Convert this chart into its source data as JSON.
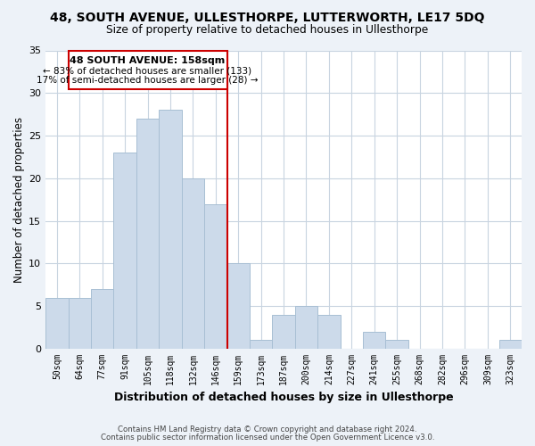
{
  "title_line1": "48, SOUTH AVENUE, ULLESTHORPE, LUTTERWORTH, LE17 5DQ",
  "title_line2": "Size of property relative to detached houses in Ullesthorpe",
  "xlabel": "Distribution of detached houses by size in Ullesthorpe",
  "ylabel": "Number of detached properties",
  "bar_labels": [
    "50sqm",
    "64sqm",
    "77sqm",
    "91sqm",
    "105sqm",
    "118sqm",
    "132sqm",
    "146sqm",
    "159sqm",
    "173sqm",
    "187sqm",
    "200sqm",
    "214sqm",
    "227sqm",
    "241sqm",
    "255sqm",
    "268sqm",
    "282sqm",
    "296sqm",
    "309sqm",
    "323sqm"
  ],
  "bar_heights": [
    6,
    6,
    7,
    23,
    27,
    28,
    20,
    17,
    10,
    1,
    4,
    5,
    4,
    0,
    2,
    1,
    0,
    0,
    0,
    0,
    1
  ],
  "bar_color": "#ccdaea",
  "bar_edgecolor": "#a8bfd4",
  "vline_x": 8,
  "vline_color": "#cc0000",
  "ann_text_line1": "48 SOUTH AVENUE: 158sqm",
  "ann_text_line2": "← 83% of detached houses are smaller (133)",
  "ann_text_line3": "17% of semi-detached houses are larger (28) →",
  "ylim": [
    0,
    35
  ],
  "yticks": [
    0,
    5,
    10,
    15,
    20,
    25,
    30,
    35
  ],
  "footer_line1": "Contains HM Land Registry data © Crown copyright and database right 2024.",
  "footer_line2": "Contains public sector information licensed under the Open Government Licence v3.0.",
  "background_color": "#edf2f8",
  "plot_bg_color": "#ffffff",
  "grid_color": "#c8d4e0"
}
